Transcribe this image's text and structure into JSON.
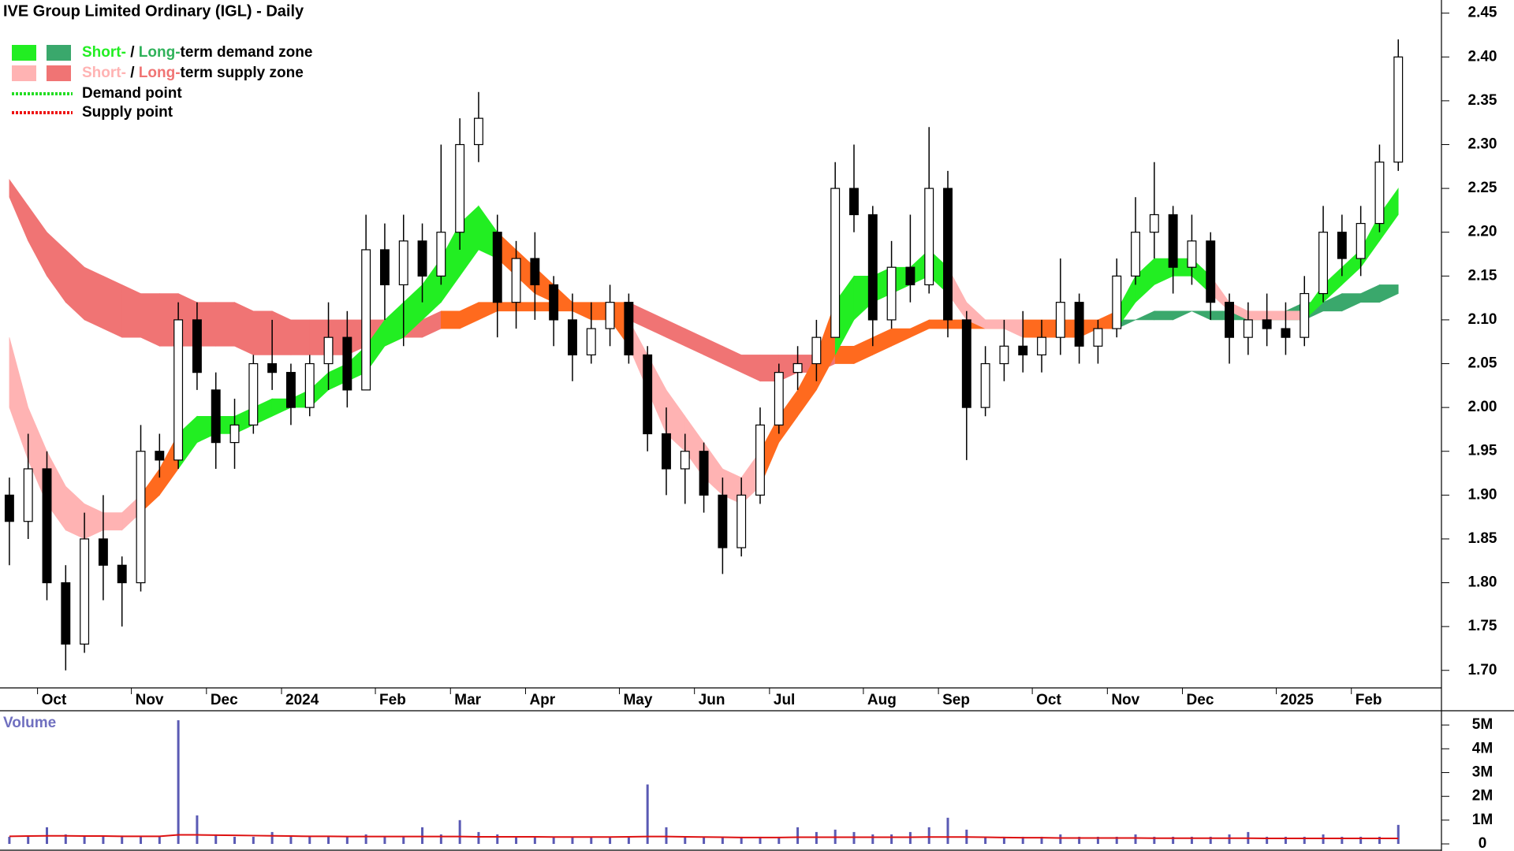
{
  "chart_data": {
    "type": "candlestick",
    "title": "IVE Group Limited Ordinary (IGL) - Daily",
    "categories": [
      null,
      null,
      "Oct",
      null,
      null,
      null,
      null,
      "Nov",
      null,
      null,
      null,
      "Dec",
      null,
      null,
      null,
      "2024",
      null,
      null,
      null,
      null,
      "Feb",
      null,
      null,
      null,
      "Mar",
      null,
      null,
      null,
      "Apr",
      null,
      null,
      null,
      null,
      "May",
      null,
      null,
      null,
      "Jun",
      null,
      null,
      null,
      "Jul",
      null,
      null,
      null,
      null,
      "Aug",
      null,
      null,
      null,
      "Sep",
      null,
      null,
      null,
      null,
      "Oct",
      null,
      null,
      null,
      "Nov",
      null,
      null,
      null,
      "Dec",
      null,
      null,
      null,
      null,
      "2025",
      null,
      null,
      null,
      "Feb",
      null,
      null
    ],
    "open": [
      1.9,
      1.87,
      1.93,
      1.8,
      1.73,
      1.85,
      1.82,
      1.8,
      1.95,
      1.94,
      2.1,
      2.02,
      1.96,
      1.98,
      2.05,
      2.04,
      2.0,
      2.05,
      2.08,
      2.02,
      2.18,
      2.14,
      2.19,
      2.15,
      2.2,
      2.3,
      2.2,
      2.12,
      2.17,
      2.14,
      2.1,
      2.06,
      2.09,
      2.12,
      2.06,
      1.97,
      1.93,
      1.95,
      1.9,
      1.84,
      1.9,
      1.98,
      2.04,
      2.05,
      2.08,
      2.25,
      2.22,
      2.1,
      2.16,
      2.14,
      2.25,
      2.1,
      2.0,
      2.05,
      2.07,
      2.06,
      2.08,
      2.12,
      2.07,
      2.09,
      2.15,
      2.2,
      2.22,
      2.16,
      2.19,
      2.12,
      2.08,
      2.1,
      2.09,
      2.08,
      2.13,
      2.2,
      2.17,
      2.21,
      2.28
    ],
    "high": [
      1.92,
      1.97,
      1.95,
      1.82,
      1.88,
      1.9,
      1.83,
      1.98,
      1.97,
      2.12,
      2.12,
      2.04,
      2.01,
      2.06,
      2.1,
      2.05,
      2.06,
      2.12,
      2.11,
      2.22,
      2.21,
      2.22,
      2.21,
      2.3,
      2.33,
      2.36,
      2.22,
      2.19,
      2.2,
      2.15,
      2.13,
      2.12,
      2.14,
      2.13,
      2.07,
      2.0,
      1.97,
      1.96,
      1.92,
      1.92,
      2.0,
      2.05,
      2.07,
      2.1,
      2.28,
      2.3,
      2.23,
      2.19,
      2.22,
      2.32,
      2.27,
      2.11,
      2.07,
      2.1,
      2.11,
      2.1,
      2.17,
      2.13,
      2.1,
      2.17,
      2.24,
      2.28,
      2.23,
      2.22,
      2.2,
      2.13,
      2.12,
      2.13,
      2.12,
      2.15,
      2.23,
      2.22,
      2.23,
      2.3,
      2.42
    ],
    "low": [
      1.82,
      1.85,
      1.78,
      1.7,
      1.72,
      1.78,
      1.75,
      1.79,
      1.92,
      1.93,
      2.02,
      1.93,
      1.93,
      1.97,
      2.02,
      1.98,
      1.99,
      2.02,
      2.0,
      2.02,
      2.1,
      2.07,
      2.12,
      2.14,
      2.18,
      2.28,
      2.08,
      2.09,
      2.1,
      2.07,
      2.03,
      2.05,
      2.07,
      2.05,
      1.95,
      1.9,
      1.89,
      1.88,
      1.81,
      1.83,
      1.89,
      1.97,
      2.02,
      2.03,
      2.08,
      2.2,
      2.07,
      2.09,
      2.12,
      2.13,
      2.08,
      1.94,
      1.99,
      2.03,
      2.04,
      2.04,
      2.06,
      2.05,
      2.05,
      2.08,
      2.14,
      2.17,
      2.13,
      2.14,
      2.1,
      2.05,
      2.06,
      2.07,
      2.06,
      2.07,
      2.12,
      2.15,
      2.15,
      2.2,
      2.27
    ],
    "close": [
      1.87,
      1.93,
      1.8,
      1.73,
      1.85,
      1.82,
      1.8,
      1.95,
      1.94,
      2.1,
      2.04,
      1.96,
      1.98,
      2.05,
      2.04,
      2.0,
      2.05,
      2.08,
      2.02,
      2.18,
      2.14,
      2.19,
      2.15,
      2.2,
      2.3,
      2.33,
      2.12,
      2.17,
      2.14,
      2.1,
      2.06,
      2.09,
      2.12,
      2.06,
      1.97,
      1.93,
      1.95,
      1.9,
      1.84,
      1.9,
      1.98,
      2.04,
      2.05,
      2.08,
      2.25,
      2.22,
      2.1,
      2.16,
      2.14,
      2.25,
      2.1,
      2.0,
      2.05,
      2.07,
      2.06,
      2.08,
      2.12,
      2.07,
      2.09,
      2.15,
      2.2,
      2.22,
      2.16,
      2.19,
      2.12,
      2.08,
      2.1,
      2.09,
      2.08,
      2.13,
      2.2,
      2.17,
      2.21,
      2.28,
      2.4
    ],
    "zones": [
      {
        "upper": [
          2.26,
          2.23,
          2.2,
          2.18,
          2.16,
          2.15,
          2.14,
          2.13,
          2.13,
          2.13,
          2.12,
          2.12,
          2.12,
          2.11,
          2.11,
          2.1,
          2.1,
          2.1,
          2.1,
          2.1,
          2.1,
          2.1,
          2.1,
          2.11,
          2.11,
          2.12,
          2.12,
          2.12,
          2.12,
          2.12,
          2.12,
          2.12,
          2.12,
          2.12,
          2.11,
          2.1,
          2.09,
          2.08,
          2.07,
          2.06,
          2.06,
          2.06,
          2.06,
          2.06,
          2.07,
          2.07,
          2.08,
          2.09,
          2.09,
          2.1,
          2.1,
          2.1,
          2.1,
          2.1,
          2.1,
          2.09,
          2.09,
          2.09,
          2.09,
          2.1,
          2.1,
          2.11,
          2.11,
          2.11,
          2.11,
          2.11,
          2.11,
          2.11,
          2.11,
          2.12,
          2.12,
          2.13,
          2.13,
          2.14,
          2.14
        ],
        "lower": [
          2.24,
          2.19,
          2.15,
          2.12,
          2.1,
          2.09,
          2.08,
          2.08,
          2.07,
          2.07,
          2.07,
          2.07,
          2.07,
          2.06,
          2.06,
          2.06,
          2.06,
          2.06,
          2.06,
          2.07,
          2.07,
          2.08,
          2.08,
          2.09,
          2.09,
          2.1,
          2.11,
          2.11,
          2.11,
          2.11,
          2.11,
          2.11,
          2.11,
          2.1,
          2.09,
          2.08,
          2.07,
          2.06,
          2.05,
          2.04,
          2.03,
          2.03,
          2.04,
          2.04,
          2.05,
          2.05,
          2.06,
          2.07,
          2.08,
          2.09,
          2.09,
          2.09,
          2.09,
          2.09,
          2.09,
          2.08,
          2.08,
          2.08,
          2.09,
          2.09,
          2.1,
          2.1,
          2.1,
          2.11,
          2.1,
          2.1,
          2.1,
          2.1,
          2.1,
          2.1,
          2.11,
          2.11,
          2.12,
          2.12,
          2.13
        ],
        "segment_colors": [
          "#f07474",
          "#f07474",
          "#f07474",
          "#f07474",
          "#f07474",
          "#f07474",
          "#f07474",
          "#f07474",
          "#f07474",
          "#f07474",
          "#f07474",
          "#f07474",
          "#f07474",
          "#f07474",
          "#f07474",
          "#f07474",
          "#f07474",
          "#f07474",
          "#f07474",
          "#f07474",
          "#f07474",
          "#f07474",
          "#f07474",
          "#ff6a1e",
          "#ff6a1e",
          "#ff6a1e",
          "#ff6a1e",
          "#ff6a1e",
          "#ff6a1e",
          "#ff6a1e",
          "#ff6a1e",
          "#ff6a1e",
          "#ff6a1e",
          "#f07474",
          "#f07474",
          "#f07474",
          "#f07474",
          "#f07474",
          "#f07474",
          "#f07474",
          "#f07474",
          "#f07474",
          "#f07474",
          "#f07474",
          "#ff6a1e",
          "#ff6a1e",
          "#ff6a1e",
          "#ff6a1e",
          "#ff6a1e",
          "#ff6a1e",
          "#ff6a1e",
          "#ff6a1e",
          "#ff6a1e",
          "#ff6a1e",
          "#ff6a1e",
          "#ff6a1e",
          "#ff6a1e",
          "#ff6a1e",
          "#ff6a1e",
          "#3aa86c",
          "#3aa86c",
          "#3aa86c",
          "#3aa86c",
          "#3aa86c",
          "#3aa86c",
          "#3aa86c",
          "#3aa86c",
          "#3aa86c",
          "#3aa86c",
          "#3aa86c",
          "#3aa86c",
          "#3aa86c",
          "#3aa86c",
          "#3aa86c"
        ]
      },
      {
        "upper": [
          2.08,
          2.0,
          1.95,
          1.91,
          1.89,
          1.88,
          1.88,
          1.9,
          1.93,
          1.97,
          1.99,
          1.99,
          1.99,
          2.0,
          2.01,
          2.01,
          2.02,
          2.04,
          2.05,
          2.07,
          2.1,
          2.12,
          2.14,
          2.17,
          2.21,
          2.23,
          2.2,
          2.18,
          2.16,
          2.14,
          2.12,
          2.11,
          2.11,
          2.1,
          2.06,
          2.02,
          1.99,
          1.96,
          1.93,
          1.92,
          1.95,
          1.99,
          2.02,
          2.06,
          2.12,
          2.15,
          2.15,
          2.16,
          2.16,
          2.18,
          2.16,
          2.12,
          2.1,
          2.1,
          2.1,
          2.1,
          2.1,
          2.1,
          2.1,
          2.11,
          2.15,
          2.17,
          2.17,
          2.17,
          2.15,
          2.12,
          2.11,
          2.11,
          2.11,
          2.11,
          2.14,
          2.16,
          2.18,
          2.22,
          2.25
        ],
        "lower": [
          2.0,
          1.94,
          1.89,
          1.86,
          1.85,
          1.86,
          1.86,
          1.88,
          1.9,
          1.93,
          1.96,
          1.97,
          1.97,
          1.98,
          1.99,
          2.0,
          2.0,
          2.02,
          2.03,
          2.04,
          2.07,
          2.08,
          2.1,
          2.12,
          2.15,
          2.18,
          2.17,
          2.15,
          2.13,
          2.12,
          2.11,
          2.1,
          2.1,
          2.07,
          2.02,
          1.97,
          1.95,
          1.92,
          1.9,
          1.89,
          1.91,
          1.96,
          1.99,
          2.02,
          2.06,
          2.1,
          2.12,
          2.13,
          2.14,
          2.15,
          2.13,
          2.1,
          2.09,
          2.09,
          2.08,
          2.08,
          2.08,
          2.09,
          2.09,
          2.09,
          2.12,
          2.14,
          2.15,
          2.15,
          2.13,
          2.11,
          2.1,
          2.1,
          2.1,
          2.1,
          2.12,
          2.14,
          2.16,
          2.19,
          2.22
        ],
        "segment_colors": [
          "#ffb3b3",
          "#ffb3b3",
          "#ffb3b3",
          "#ffb3b3",
          "#ffb3b3",
          "#ffb3b3",
          "#ffb3b3",
          "#ff6a1e",
          "#ff6a1e",
          "#22ee22",
          "#22ee22",
          "#22ee22",
          "#22ee22",
          "#22ee22",
          "#22ee22",
          "#22ee22",
          "#22ee22",
          "#22ee22",
          "#22ee22",
          "#22ee22",
          "#22ee22",
          "#22ee22",
          "#22ee22",
          "#22ee22",
          "#22ee22",
          "#22ee22",
          "#ff6a1e",
          "#ff6a1e",
          "#ff6a1e",
          "#ff6a1e",
          "#ff6a1e",
          "#ff6a1e",
          "#ff6a1e",
          "#ffb3b3",
          "#ffb3b3",
          "#ffb3b3",
          "#ffb3b3",
          "#ffb3b3",
          "#ffb3b3",
          "#ffb3b3",
          "#ff6a1e",
          "#ff6a1e",
          "#ff6a1e",
          "#ff6a1e",
          "#22ee22",
          "#22ee22",
          "#22ee22",
          "#22ee22",
          "#22ee22",
          "#22ee22",
          "#ffb3b3",
          "#ffb3b3",
          "#ffb3b3",
          "#ffb3b3",
          "#ff6a1e",
          "#ff6a1e",
          "#ff6a1e",
          "#ff6a1e",
          "#ff6a1e",
          "#22ee22",
          "#22ee22",
          "#22ee22",
          "#22ee22",
          "#22ee22",
          "#ffb3b3",
          "#ffb3b3",
          "#ffb3b3",
          "#ffb3b3",
          "#ffb3b3",
          "#22ee22",
          "#22ee22",
          "#22ee22",
          "#22ee22",
          "#22ee22"
        ]
      }
    ],
    "ylim": [
      1.68,
      2.465
    ],
    "yticks": [
      {
        "value": 1.7,
        "label": "1.70"
      },
      1.75,
      {
        "value": 1.8,
        "label": "1.80"
      },
      1.85,
      {
        "value": 1.9,
        "label": "1.90"
      },
      1.95,
      {
        "value": 2,
        "label": "2.00"
      },
      2.05,
      {
        "value": 2.1,
        "label": "2.10"
      },
      2.15,
      {
        "value": 2.2,
        "label": "2.20"
      },
      2.25,
      {
        "value": 2.3,
        "label": "2.30"
      },
      2.35,
      {
        "value": 2.4,
        "label": "2.40"
      },
      2.45
    ],
    "legend": [
      {
        "swatches": [
          "#22ee22",
          "#3aa86c"
        ],
        "parts": [
          {
            "text": "Short-",
            "color": "#22ee22"
          },
          {
            "text": " / ",
            "color": "#000000"
          },
          {
            "text": "Long-",
            "color": "#2fb25a"
          },
          {
            "text": "term demand zone",
            "color": "#000000"
          }
        ]
      },
      {
        "swatches": [
          "#ffb3b3",
          "#f07474"
        ],
        "parts": [
          {
            "text": "Short-",
            "color": "#ffb3b3"
          },
          {
            "text": " / ",
            "color": "#000000"
          },
          {
            "text": "Long-",
            "color": "#f07474"
          },
          {
            "text": "term supply zone",
            "color": "#000000"
          }
        ]
      },
      {
        "line_color": "#22dd22",
        "parts": [
          {
            "text": "Demand point",
            "color": "#000000"
          }
        ]
      },
      {
        "line_color": "#ee1111",
        "parts": [
          {
            "text": "Supply point",
            "color": "#000000"
          }
        ]
      }
    ],
    "volume": {
      "label": "Volume",
      "color": "#5a5ab4",
      "ma_color": "#dd1111",
      "values": [
        0.3,
        0.35,
        0.7,
        0.4,
        0.3,
        0.3,
        0.35,
        0.3,
        0.3,
        5.2,
        1.2,
        0.4,
        0.3,
        0.3,
        0.5,
        0.3,
        0.3,
        0.3,
        0.3,
        0.4,
        0.3,
        0.3,
        0.7,
        0.4,
        1.0,
        0.5,
        0.4,
        0.3,
        0.3,
        0.3,
        0.3,
        0.3,
        0.3,
        0.3,
        2.5,
        0.7,
        0.3,
        0.3,
        0.3,
        0.3,
        0.3,
        0.3,
        0.7,
        0.5,
        0.6,
        0.5,
        0.4,
        0.4,
        0.5,
        0.7,
        1.1,
        0.6,
        0.3,
        0.3,
        0.3,
        0.3,
        0.4,
        0.3,
        0.3,
        0.3,
        0.4,
        0.3,
        0.3,
        0.3,
        0.3,
        0.4,
        0.5,
        0.3,
        0.3,
        0.3,
        0.4,
        0.3,
        0.3,
        0.3,
        0.8
      ],
      "ma": [
        0.32,
        0.33,
        0.34,
        0.34,
        0.33,
        0.33,
        0.32,
        0.32,
        0.32,
        0.38,
        0.38,
        0.37,
        0.36,
        0.35,
        0.34,
        0.33,
        0.32,
        0.32,
        0.31,
        0.31,
        0.31,
        0.31,
        0.31,
        0.31,
        0.31,
        0.3,
        0.3,
        0.3,
        0.3,
        0.29,
        0.29,
        0.29,
        0.29,
        0.3,
        0.31,
        0.31,
        0.3,
        0.29,
        0.28,
        0.27,
        0.27,
        0.27,
        0.28,
        0.28,
        0.28,
        0.28,
        0.28,
        0.28,
        0.28,
        0.29,
        0.29,
        0.29,
        0.28,
        0.27,
        0.26,
        0.26,
        0.25,
        0.25,
        0.25,
        0.25,
        0.25,
        0.24,
        0.24,
        0.24,
        0.24,
        0.24,
        0.24,
        0.23,
        0.23,
        0.23,
        0.23,
        0.23,
        0.23,
        0.23,
        0.23
      ],
      "ylim": [
        0,
        5.6
      ],
      "yticks": [
        0,
        {
          "value": 1,
          "label": "1M"
        },
        {
          "value": 2,
          "label": "2M"
        },
        {
          "value": 3,
          "label": "3M"
        },
        {
          "value": 4,
          "label": "4M"
        },
        {
          "value": 5,
          "label": "5M"
        }
      ]
    }
  }
}
